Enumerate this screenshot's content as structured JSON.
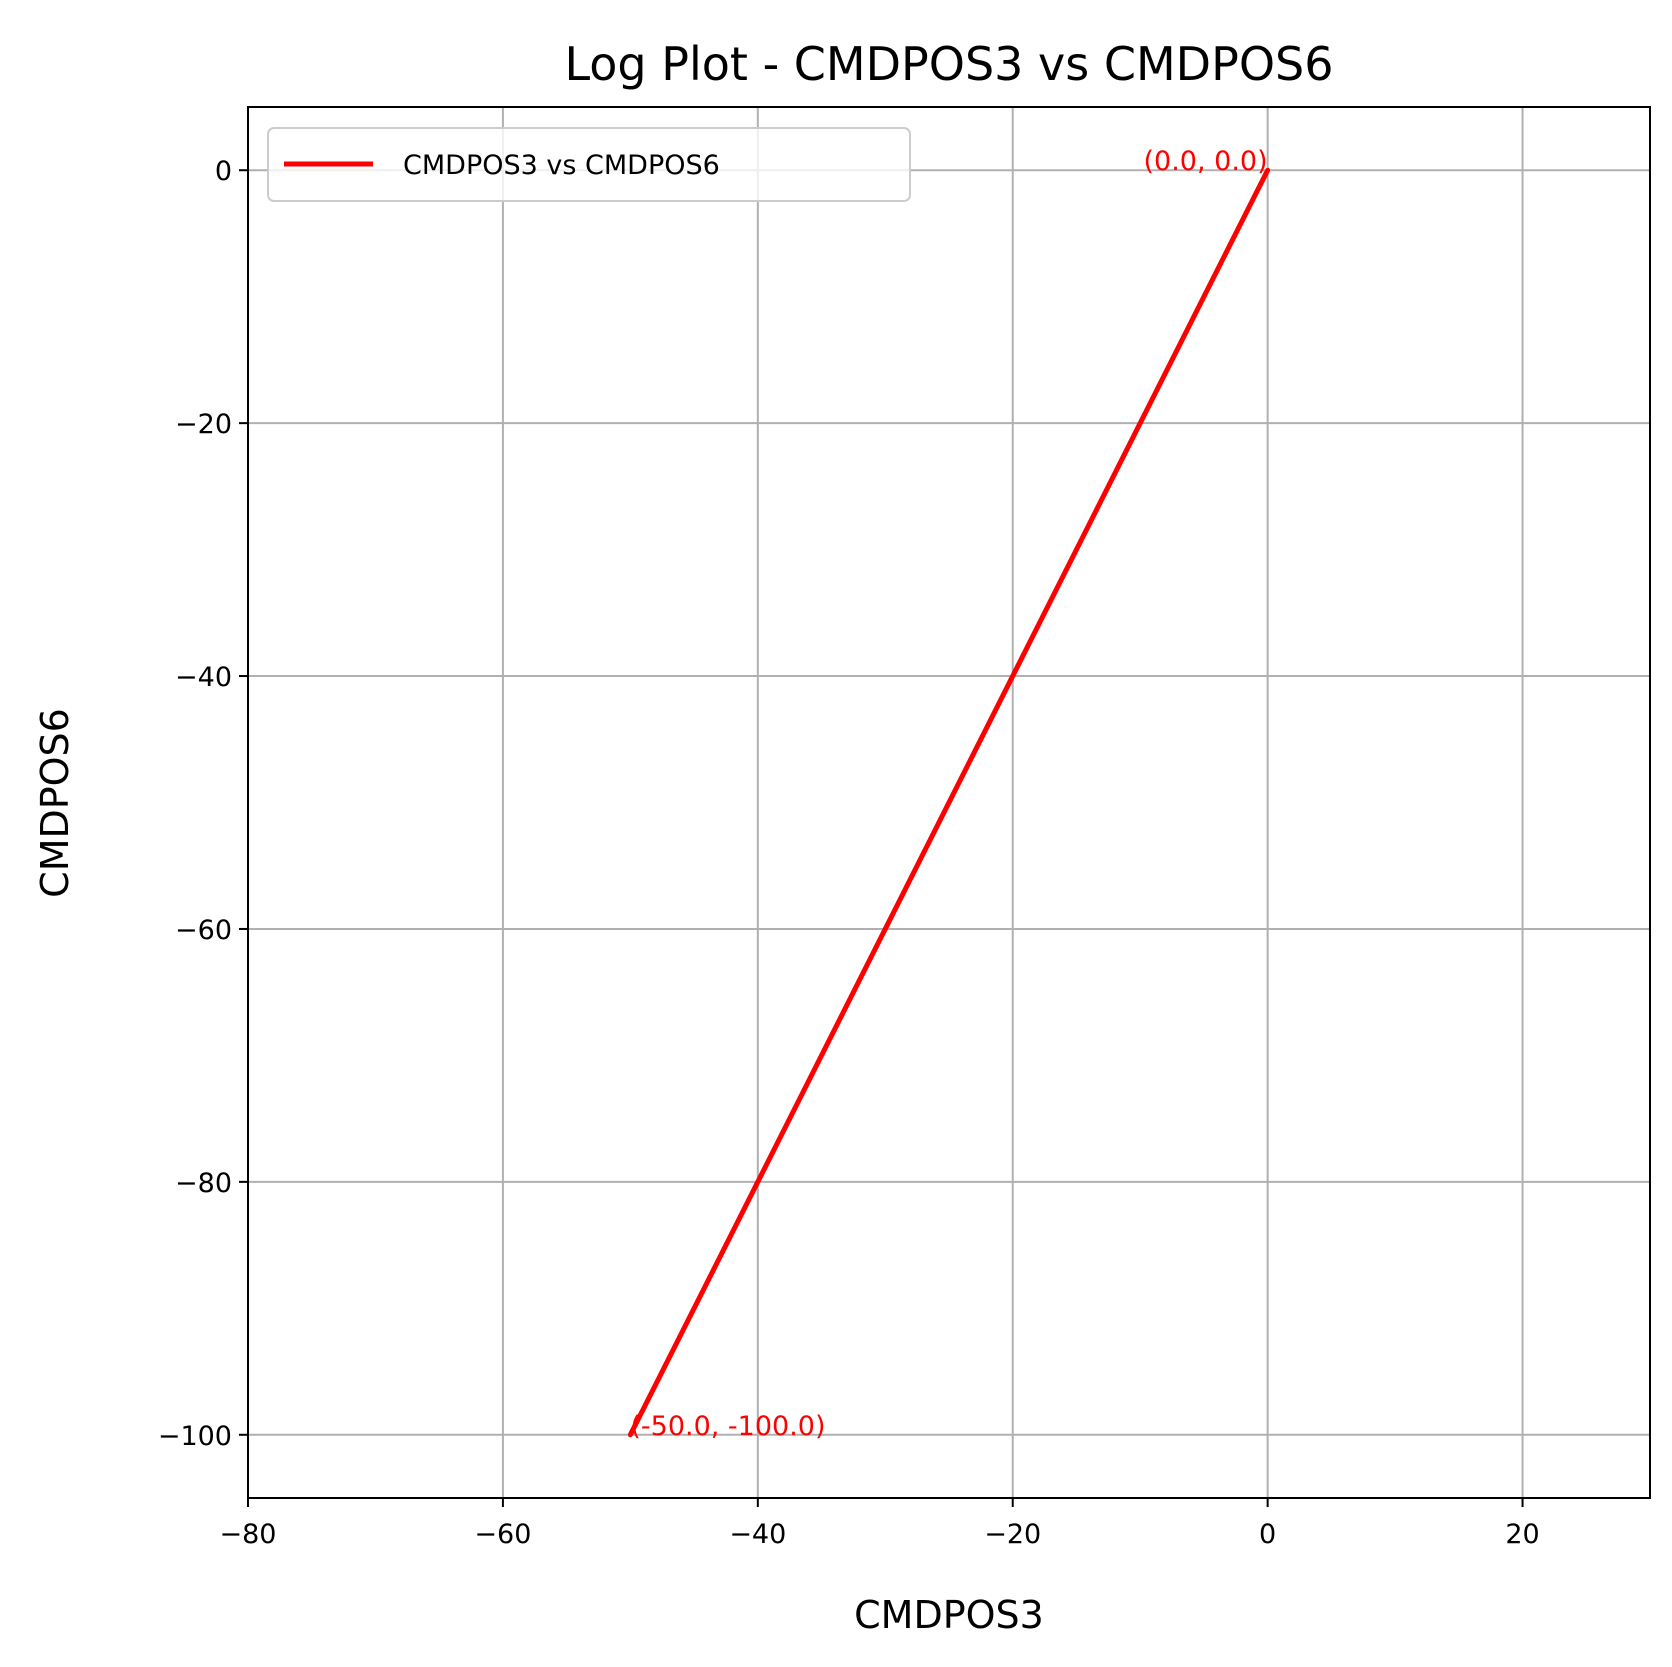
{
  "chart_data": {
    "type": "line",
    "title": "Log Plot - CMDPOS3 vs CMDPOS6",
    "xlabel": "CMDPOS3",
    "ylabel": "CMDPOS6",
    "xlim": [
      -80,
      30
    ],
    "ylim": [
      -105,
      5
    ],
    "grid": true,
    "legend_placement": "top-left",
    "x_ticks": [
      -80,
      -60,
      -40,
      -20,
      0,
      20
    ],
    "x_tick_labels": [
      "−80",
      "−60",
      "−40",
      "−20",
      "0",
      "20"
    ],
    "y_ticks": [
      0,
      -20,
      -40,
      -60,
      -80,
      -100
    ],
    "y_tick_labels": [
      "0",
      "−20",
      "−40",
      "−60",
      "−80",
      "−100"
    ],
    "series": [
      {
        "name": "CMDPOS3 vs CMDPOS6",
        "color": "#ff0000",
        "x": [
          0,
          -50
        ],
        "y": [
          0,
          -100
        ]
      }
    ],
    "annotations": [
      {
        "text": "(0.0, 0.0)",
        "x": 0,
        "y": 0,
        "anchor": "end",
        "color": "#ff0000"
      },
      {
        "text": "(-50.0, -100.0)",
        "x": -50,
        "y": -100,
        "anchor": "start",
        "color": "#ff0000"
      }
    ]
  }
}
